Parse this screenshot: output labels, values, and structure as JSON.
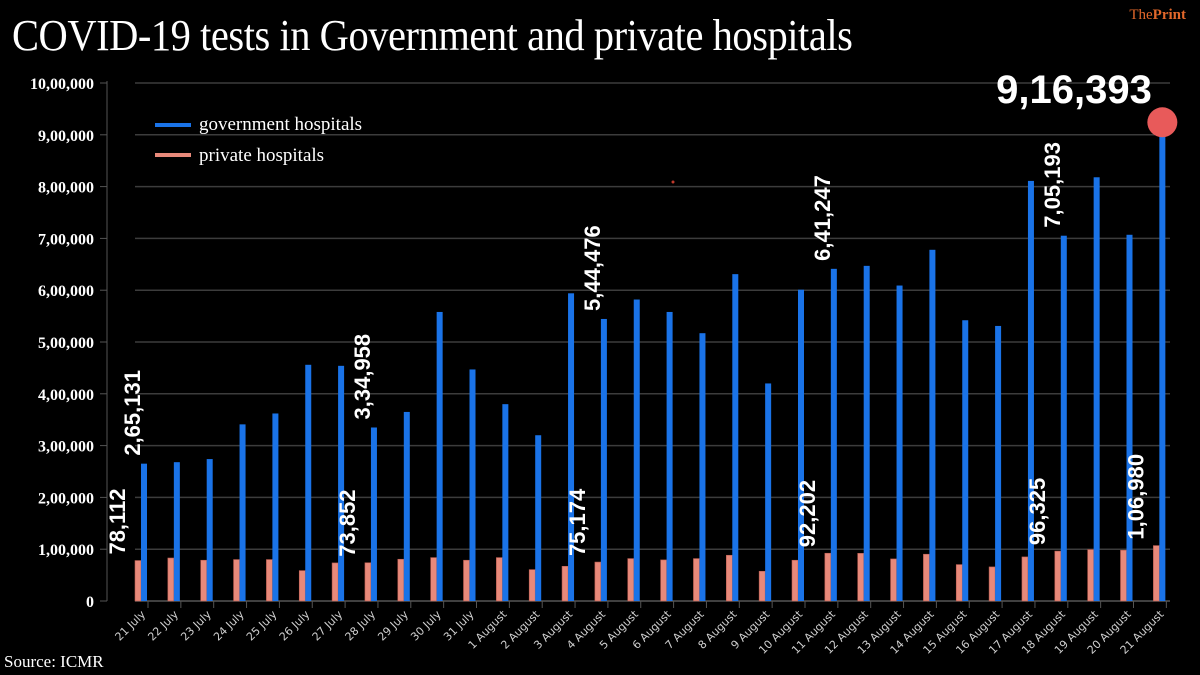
{
  "header": {
    "title": "COVID-19 tests in Government and private hospitals",
    "brand_light": "The",
    "brand_bold": "Print"
  },
  "footer": {
    "source": "Source: ICMR"
  },
  "colors": {
    "background": "#000000",
    "government": "#1a73e8",
    "private": "#e8897a",
    "highlight_dot": "#e85a5a",
    "gridline": "#3c3c3c",
    "brand": "#e2672a"
  },
  "chart_data": {
    "type": "bar",
    "title": "COVID-19 tests in Government and private hospitals",
    "xlabel": "",
    "ylabel": "",
    "ylim": [
      0,
      1000000
    ],
    "y_ticks": [
      0,
      100000,
      200000,
      300000,
      400000,
      500000,
      600000,
      700000,
      800000,
      900000,
      1000000
    ],
    "y_tick_labels": [
      "0",
      "1,00,000",
      "2,00,000",
      "3,00,000",
      "4,00,000",
      "5,00,000",
      "6,00,000",
      "7,00,000",
      "8,00,000",
      "9,00,000",
      "10,00,000"
    ],
    "grid": true,
    "legend_position": "top-left",
    "categories": [
      "21 July",
      "22 July",
      "23 July",
      "24 July",
      "25 July",
      "26 July",
      "27 July",
      "28 July",
      "29 July",
      "30 July",
      "31 July",
      "1 August",
      "2 August",
      "3 August",
      "4 August",
      "5 August",
      "6 August",
      "7 August",
      "8 August",
      "9 August",
      "10 August",
      "11 August",
      "12 August",
      "13 August",
      "14 August",
      "15 August",
      "16 August",
      "17 August",
      "18 August",
      "19 August",
      "20 August",
      "21 August"
    ],
    "series": [
      {
        "name": "government hospitals",
        "color": "#1a73e8",
        "values": [
          265131,
          268000,
          274000,
          341000,
          362000,
          456000,
          454000,
          334958,
          365000,
          558000,
          447000,
          380000,
          320000,
          594000,
          544476,
          582000,
          558000,
          517000,
          631000,
          420000,
          601000,
          641247,
          647000,
          609000,
          678000,
          542000,
          531000,
          811000,
          705193,
          818000,
          707000,
          916393
        ]
      },
      {
        "name": "private hospitals",
        "color": "#e8897a",
        "values": [
          78112,
          83000,
          78700,
          80000,
          80000,
          58700,
          73500,
          73852,
          80600,
          83800,
          78700,
          83800,
          60600,
          67000,
          75174,
          81900,
          79300,
          81900,
          88300,
          57400,
          78700,
          92202,
          92000,
          81200,
          90300,
          70300,
          65800,
          85100,
          96325,
          99300,
          98000,
          106980
        ]
      }
    ],
    "annotations": [
      {
        "series": "private hospitals",
        "category": "21 July",
        "text": "78,112"
      },
      {
        "series": "government hospitals",
        "category": "21 July",
        "text": "2,65,131"
      },
      {
        "series": "private hospitals",
        "category": "28 July",
        "text": "73,852"
      },
      {
        "series": "government hospitals",
        "category": "28 July",
        "text": "3,34,958"
      },
      {
        "series": "private hospitals",
        "category": "4 August",
        "text": "75,174"
      },
      {
        "series": "government hospitals",
        "category": "4 August",
        "text": "5,44,476"
      },
      {
        "series": "private hospitals",
        "category": "11 August",
        "text": "92,202"
      },
      {
        "series": "government hospitals",
        "category": "11 August",
        "text": "6,41,247"
      },
      {
        "series": "private hospitals",
        "category": "18 August",
        "text": "96,325"
      },
      {
        "series": "government hospitals",
        "category": "18 August",
        "text": "7,05,193"
      },
      {
        "series": "private hospitals",
        "category": "21 August",
        "text": "1,06,980"
      }
    ],
    "highlight": {
      "series": "government hospitals",
      "category": "21 August",
      "text": "9,16,393",
      "marker": "circle"
    }
  }
}
